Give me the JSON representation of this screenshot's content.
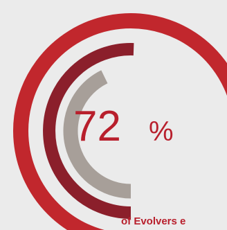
{
  "chart_data": {
    "type": "pie",
    "value_label": "72",
    "percent_sign": "%",
    "caption": "of Evolvers e",
    "colors": {
      "background": "#ebebeb",
      "outer_ring": "#c1272d",
      "middle_ring": "#8b1f2b",
      "inner_ring": "#a79f99",
      "text": "#b81f2c"
    }
  }
}
